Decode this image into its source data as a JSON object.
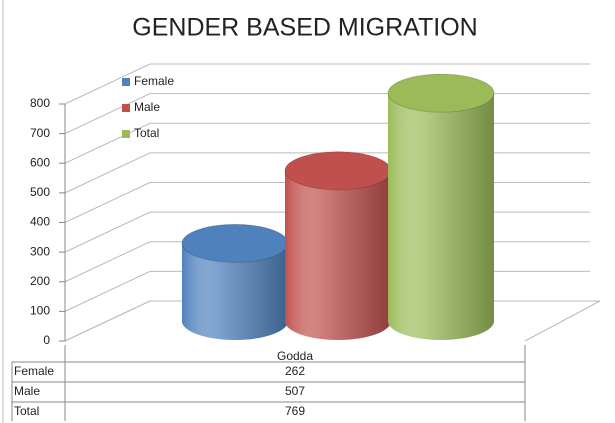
{
  "chart_data": {
    "type": "bar3d",
    "title": "GENDER BASED MIGRATION",
    "categories": [
      "Godda"
    ],
    "series": [
      {
        "name": "Female",
        "color": "#4f81bd",
        "values": [
          262
        ]
      },
      {
        "name": "Male",
        "color": "#c0504d",
        "values": [
          507
        ]
      },
      {
        "name": "Total",
        "color": "#9bbb59",
        "values": [
          769
        ]
      }
    ],
    "ylim": [
      0,
      800
    ],
    "yticks": [
      0,
      100,
      200,
      300,
      400,
      500,
      600,
      700,
      800
    ],
    "grid": true,
    "legend": "top-left"
  }
}
